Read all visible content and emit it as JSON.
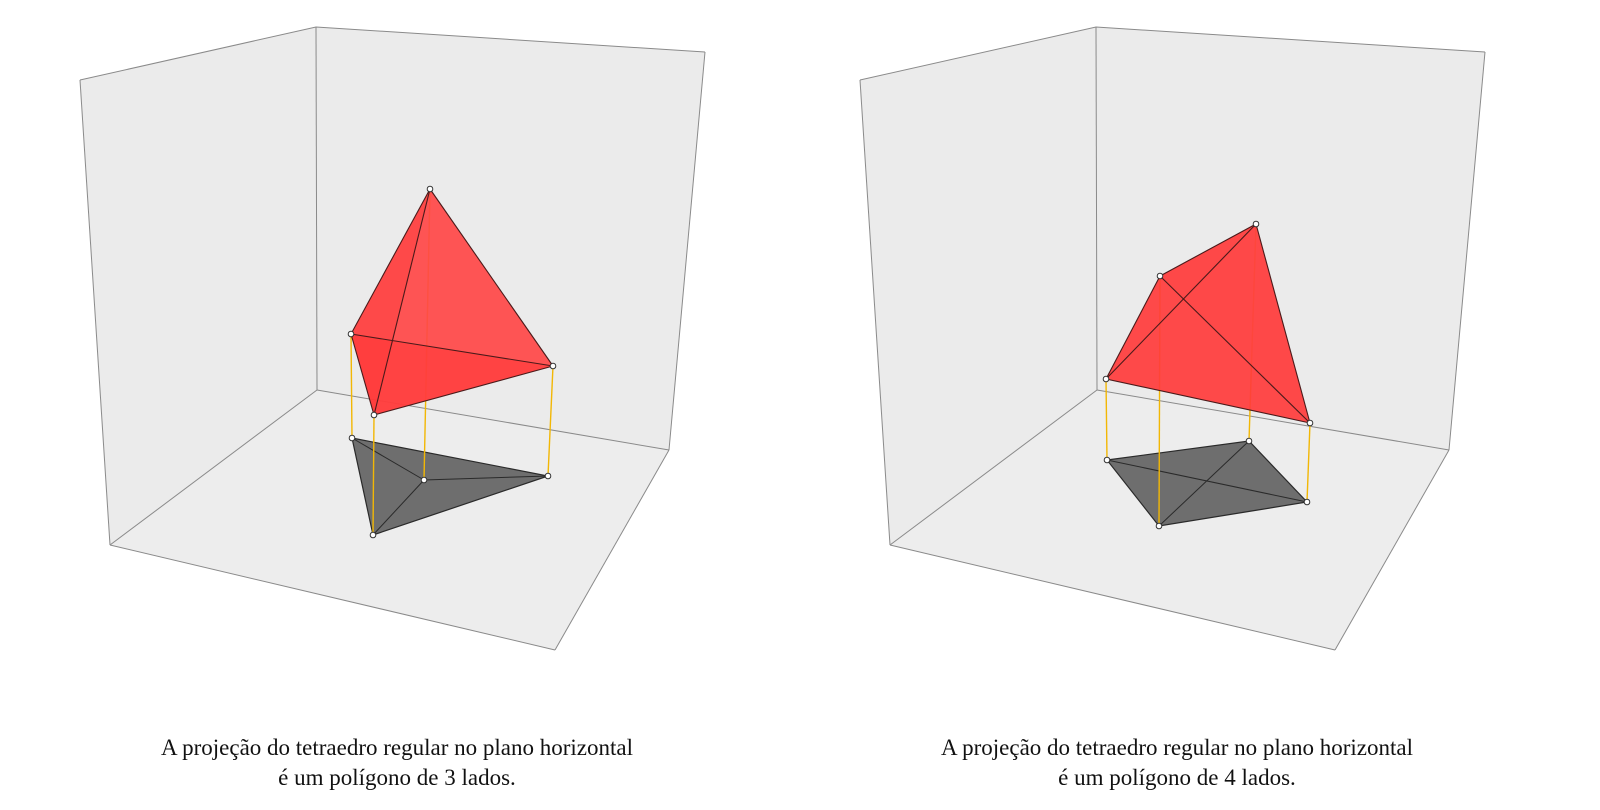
{
  "colors": {
    "wall": "#ebebeb",
    "floor": "#ededed",
    "box_edge": "#8a8a8a",
    "tetrahedron_fill": "#ff3b3b",
    "tetrahedron_edge": "#4a1a1a",
    "projection_fill": "#6e6e6e",
    "projector_line": "#f2b705"
  },
  "panels": [
    {
      "caption_line1": "A projeção do tetraedro regular no plano horizontal",
      "caption_line2": "é um polígono de 3 lados."
    },
    {
      "caption_line1": "A projeção do tetraedro regular no plano horizontal",
      "caption_line2": "é um polígono de 4 lados."
    }
  ]
}
